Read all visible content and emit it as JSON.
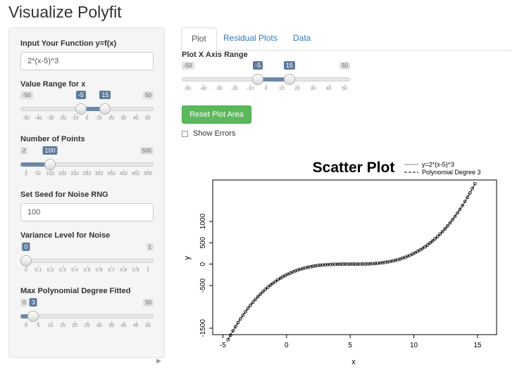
{
  "app": {
    "title": "Visualize Polyfit"
  },
  "sidebar": {
    "function": {
      "label": "Input Your Function y=f(x)",
      "value": "2*(x-5)^3"
    },
    "value_range": {
      "label": "Value Range for x",
      "min": -50,
      "max": 50,
      "from": -5,
      "to": 15,
      "min_label": "-50",
      "max_label": "50",
      "from_label": "-5",
      "to_label": "15",
      "ticks": [
        "-50",
        "-40",
        "-30",
        "-20",
        "-10",
        "0",
        "10",
        "20",
        "30",
        "40",
        "50"
      ]
    },
    "num_points": {
      "label": "Number of Points",
      "min": 2,
      "max": 500,
      "value": 100,
      "min_label": "2",
      "max_label": "500",
      "value_label": "100",
      "ticks": [
        "2",
        "52",
        "102",
        "152",
        "202",
        "252",
        "302",
        "352",
        "402",
        "452",
        "500"
      ]
    },
    "seed": {
      "label": "Set Seed for Noise RNG",
      "value": "100"
    },
    "variance": {
      "label": "Variance Level for Noise",
      "min": 0,
      "max": 1,
      "value": 0,
      "min_label": "0",
      "max_label": "1",
      "value_label": "0",
      "ticks": [
        "0",
        "0.1",
        "0.2",
        "0.3",
        "0.4",
        "0.5",
        "0.6",
        "0.7",
        "0.8",
        "0.9",
        "1"
      ]
    },
    "max_degree": {
      "label": "Max Polynomial Degree Fitted",
      "min": 0,
      "max": 50,
      "value": 3,
      "min_label": "0",
      "max_label": "50",
      "value_label": "3",
      "ticks": [
        "0",
        "5",
        "10",
        "15",
        "20",
        "25",
        "30",
        "35",
        "40",
        "45",
        "50"
      ]
    }
  },
  "tabs": [
    {
      "label": "Plot",
      "active": true
    },
    {
      "label": "Residual Plots",
      "active": false
    },
    {
      "label": "Data",
      "active": false
    }
  ],
  "main": {
    "x_range": {
      "label": "Plot X Axis Range",
      "min": -50,
      "max": 50,
      "from": -5,
      "to": 15,
      "min_label": "-50",
      "max_label": "50",
      "from_label": "-5",
      "to_label": "15",
      "ticks": [
        "-50",
        "-40",
        "-30",
        "-20",
        "-10",
        "0",
        "10",
        "20",
        "30",
        "40",
        "50"
      ]
    },
    "reset_label": "Reset Plot Area",
    "show_errors": {
      "label": "Show Errors",
      "checked": false
    }
  },
  "colors": {
    "accent": "#5d7a9c",
    "button": "#5cb85c",
    "link": "#337ab7"
  },
  "chart_data": {
    "type": "scatter",
    "title": "Scatter Plot",
    "xlabel": "x",
    "ylabel": "y",
    "xlim": [
      -5.8,
      16.5
    ],
    "ylim": [
      -1650,
      1970
    ],
    "xticks": [
      -5,
      0,
      5,
      10,
      15
    ],
    "yticks": [
      -1500,
      -500,
      0,
      500,
      1000
    ],
    "legend": "top-right",
    "series": [
      {
        "name": "y=2*(x-5)^3",
        "kind": "line",
        "style": "solid",
        "function": "2*(x-5)^3"
      },
      {
        "name": "Polynomial Degree 3",
        "kind": "line",
        "style": "dashed"
      }
    ],
    "points": {
      "n": 100,
      "x_from": -4.6,
      "x_to": 14.8,
      "function": "2*(x-5)^3"
    }
  }
}
